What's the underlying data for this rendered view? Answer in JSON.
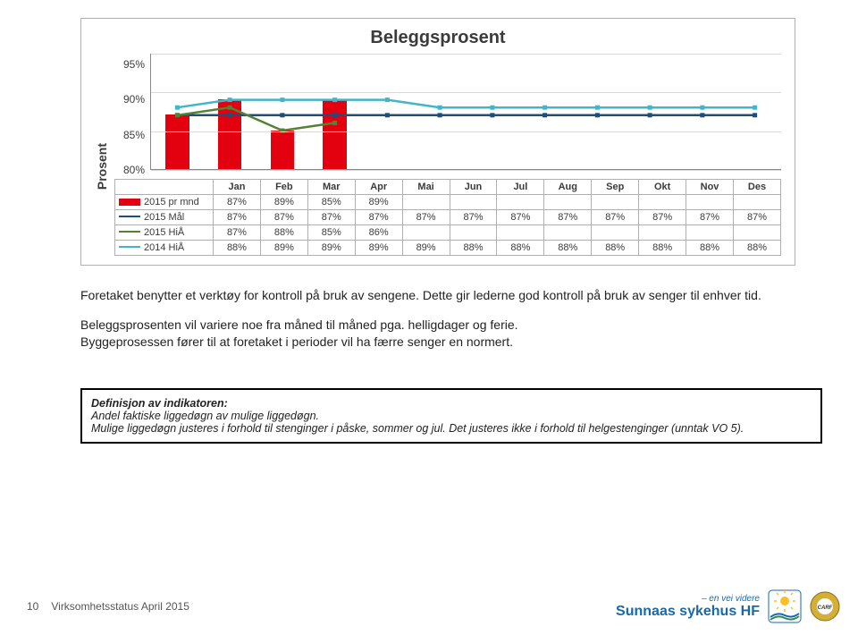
{
  "chart": {
    "title": "Beleggsprosent",
    "ylabel": "Prosent",
    "categories": [
      "Jan",
      "Feb",
      "Mar",
      "Apr",
      "Mai",
      "Jun",
      "Jul",
      "Aug",
      "Sep",
      "Okt",
      "Nov",
      "Des"
    ],
    "ymin": 80,
    "ymax": 95,
    "ystep": 5,
    "yticks": [
      "95%",
      "90%",
      "85%",
      "80%"
    ],
    "plot_bg": "#ffffff",
    "grid_color": "#d9d9d9",
    "series": [
      {
        "name": "2015 pr mnd",
        "type": "bar",
        "color": "#e3000f",
        "values": [
          87,
          89,
          85,
          89,
          null,
          null,
          null,
          null,
          null,
          null,
          null,
          null
        ]
      },
      {
        "name": "2015 Mål",
        "type": "line",
        "color": "#1f4e79",
        "values": [
          87,
          87,
          87,
          87,
          87,
          87,
          87,
          87,
          87,
          87,
          87,
          87
        ]
      },
      {
        "name": "2015 HiÅ",
        "type": "line",
        "color": "#548235",
        "values": [
          87,
          88,
          85,
          86,
          null,
          null,
          null,
          null,
          null,
          null,
          null,
          null
        ]
      },
      {
        "name": "2014 HiÅ",
        "type": "line",
        "color": "#43b5c9",
        "values": [
          88,
          89,
          89,
          89,
          89,
          88,
          88,
          88,
          88,
          88,
          88,
          88
        ]
      }
    ]
  },
  "paragraph1": "Foretaket benytter et verktøy for kontroll på bruk av sengene. Dette gir lederne god kontroll på bruk av senger til enhver tid.",
  "paragraph2a": "Beleggsprosenten vil variere noe fra måned til måned pga. helligdager og ferie.",
  "paragraph2b": "Byggeprosessen fører til at foretaket i perioder vil ha færre senger en normert.",
  "definition": {
    "heading": "Definisjon av indikatoren:",
    "line1": "Andel faktiske liggedøgn av mulige liggedøgn.",
    "line2": "Mulige liggedøgn justeres i forhold til stenginger i påske, sommer og jul. Det justeres ikke i forhold til helgestenginger (unntak VO 5)."
  },
  "footer": {
    "page": "10",
    "status": "Virksomhetsstatus April 2015",
    "hospital": "Sunnaas sykehus HF",
    "tagline": "– en vei videre"
  }
}
